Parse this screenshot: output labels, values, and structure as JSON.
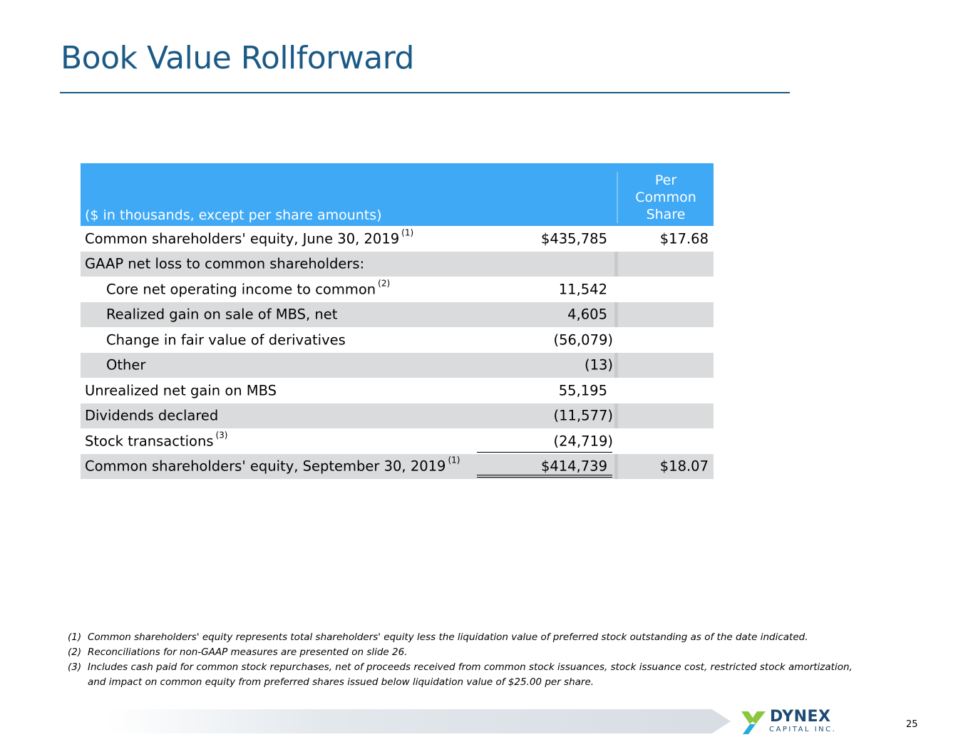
{
  "slide": {
    "title": "Book Value Rollforward",
    "page_number": "25"
  },
  "table": {
    "header_desc": "($ in thousands, except per share amounts)",
    "header_per": "Per",
    "header_common": "Common",
    "header_share": "Share",
    "rows": [
      {
        "label": "Common shareholders' equity, June 30, 2019",
        "sup": "(1)",
        "amount": "$435,785",
        "per_share": "$17.68"
      },
      {
        "label": "GAAP net loss to common shareholders:",
        "sup": "",
        "amount": "",
        "per_share": ""
      },
      {
        "label": "Core net operating income to common",
        "sup": "(2)",
        "amount": "11,542",
        "per_share": ""
      },
      {
        "label": "Realized gain on sale of MBS, net",
        "sup": "",
        "amount": "4,605",
        "per_share": ""
      },
      {
        "label": "Change in fair value of derivatives",
        "sup": "",
        "amount": "(56,079)",
        "per_share": ""
      },
      {
        "label": "Other",
        "sup": "",
        "amount": "(13)",
        "per_share": ""
      },
      {
        "label": "Unrealized net gain on MBS",
        "sup": "",
        "amount": "55,195",
        "per_share": ""
      },
      {
        "label": "Dividends declared",
        "sup": "",
        "amount": "(11,577)",
        "per_share": ""
      },
      {
        "label": "Stock transactions",
        "sup": "(3)",
        "amount": "(24,719)",
        "per_share": ""
      },
      {
        "label": "Common shareholders' equity, September 30, 2019",
        "sup": "(1)",
        "amount": "$414,739",
        "per_share": "$18.07"
      }
    ]
  },
  "footnotes": [
    {
      "num": "(1)",
      "text": "Common shareholders' equity represents total shareholders' equity less the liquidation value of preferred stock outstanding as of the date indicated."
    },
    {
      "num": "(2)",
      "text": "Reconciliations for non-GAAP measures are presented on slide 26."
    },
    {
      "num": "(3)",
      "text": "Includes cash paid for common stock repurchases, net of proceeds received from common stock issuances, stock issuance cost, restricted stock amortization,"
    },
    {
      "num": "",
      "text": "and impact on common equity from preferred shares issued below liquidation value of $25.00 per share."
    }
  ],
  "logo": {
    "name": "DYNEX",
    "subtitle": "CAPITAL INC."
  },
  "colors": {
    "title": "#1b5a86",
    "header_bg": "#3fa9f5",
    "row_alt": "#dadbdc"
  }
}
